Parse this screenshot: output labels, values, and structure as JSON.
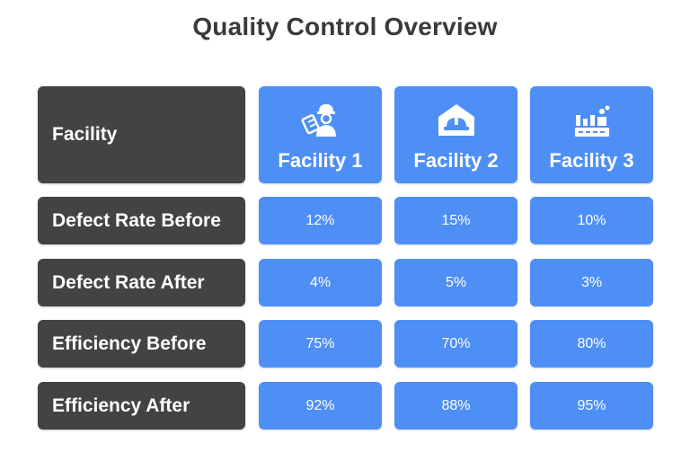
{
  "title": "Quality Control Overview",
  "header": {
    "label": "Facility",
    "facilities": [
      {
        "name": "Facility 1",
        "icon": "worker-icon"
      },
      {
        "name": "Facility 2",
        "icon": "hardhat-house-icon"
      },
      {
        "name": "Facility 3",
        "icon": "factory-icon"
      }
    ]
  },
  "rows": [
    {
      "label": "Defect Rate Before",
      "values": [
        "12%",
        "15%",
        "10%"
      ]
    },
    {
      "label": "Defect Rate After",
      "values": [
        "4%",
        "5%",
        "3%"
      ]
    },
    {
      "label": "Efficiency Before",
      "values": [
        "75%",
        "70%",
        "80%"
      ]
    },
    {
      "label": "Efficiency After",
      "values": [
        "92%",
        "88%",
        "95%"
      ]
    }
  ],
  "colors": {
    "label_bg": "#434343",
    "value_bg": "#4e8ff5",
    "title": "#3a3a3a"
  }
}
